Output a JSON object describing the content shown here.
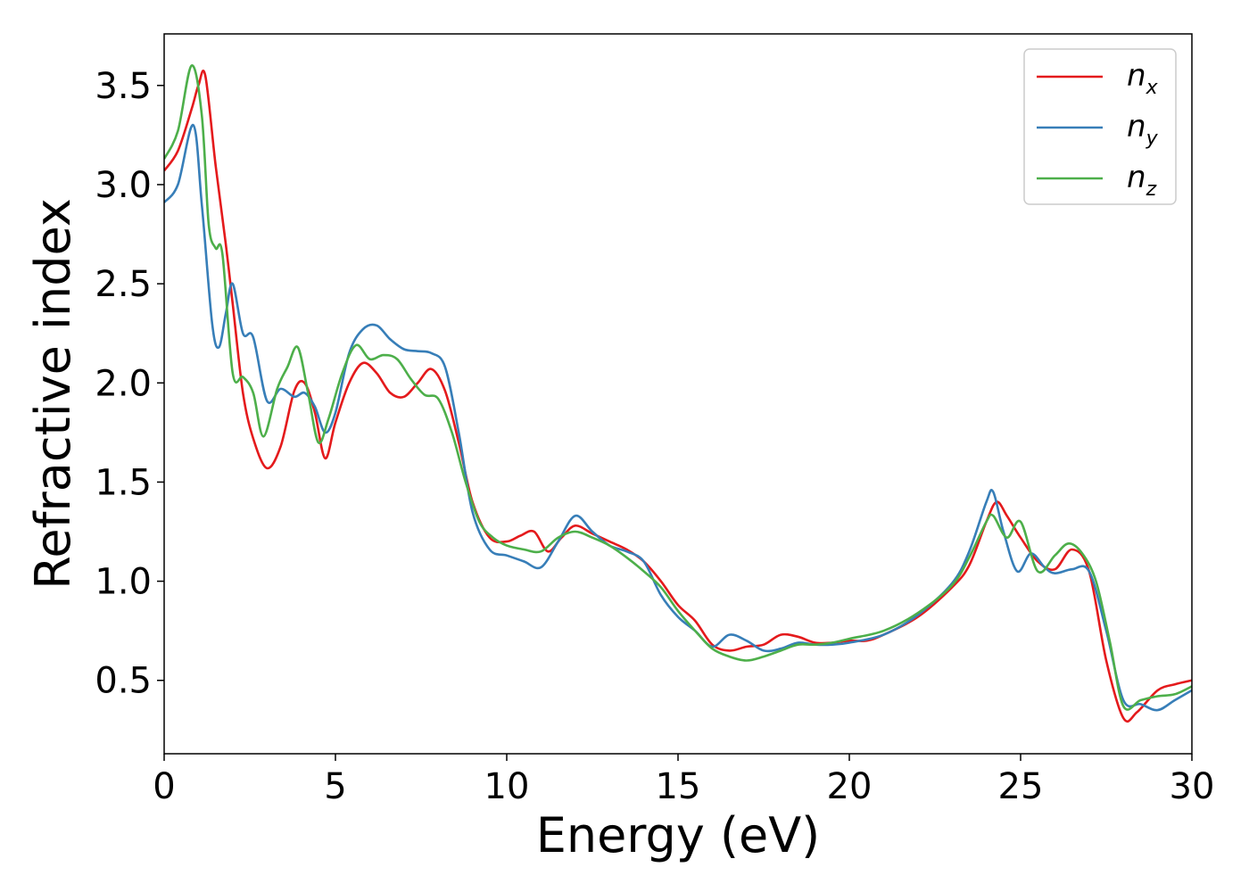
{
  "chart_data": {
    "type": "line",
    "title": "",
    "xlabel": "Energy (eV)",
    "ylabel": "Refractive index",
    "xlim": [
      0,
      30
    ],
    "ylim": [
      0.13,
      3.76
    ],
    "xticks": [
      0,
      5,
      10,
      15,
      20,
      25,
      30
    ],
    "xtick_labels": [
      "0",
      "5",
      "10",
      "15",
      "20",
      "25",
      "30"
    ],
    "yticks": [
      0.5,
      1.0,
      1.5,
      2.0,
      2.5,
      3.0,
      3.5
    ],
    "ytick_labels": [
      "0.5",
      "1.0",
      "1.5",
      "2.0",
      "2.5",
      "3.0",
      "3.5"
    ],
    "grid": false,
    "legend_position": "top-right",
    "series": [
      {
        "name": "n_x",
        "label_base": "n",
        "label_sub": "x",
        "color": "#e41a1c",
        "x": [
          0,
          0.4,
          0.8,
          1.0,
          1.2,
          1.5,
          1.8,
          2.0,
          2.3,
          2.6,
          3.0,
          3.4,
          3.8,
          4.1,
          4.4,
          4.7,
          5.0,
          5.4,
          5.8,
          6.2,
          6.6,
          7.0,
          7.4,
          7.8,
          8.2,
          8.6,
          9.0,
          9.5,
          10.0,
          10.4,
          10.8,
          11.2,
          11.6,
          12.0,
          12.5,
          13.0,
          13.5,
          14.0,
          14.5,
          15.0,
          15.5,
          16.0,
          16.5,
          17.0,
          17.5,
          18.0,
          18.5,
          19.0,
          19.5,
          20.0,
          20.5,
          21.0,
          22.0,
          23.0,
          23.5,
          24.0,
          24.3,
          24.6,
          25.0,
          25.5,
          26.0,
          26.5,
          27.0,
          27.5,
          28.0,
          28.4,
          29.0,
          29.5,
          30.0
        ],
        "y": [
          3.07,
          3.17,
          3.38,
          3.5,
          3.55,
          3.1,
          2.7,
          2.4,
          1.95,
          1.72,
          1.57,
          1.68,
          1.96,
          2.0,
          1.85,
          1.62,
          1.8,
          2.0,
          2.1,
          2.05,
          1.95,
          1.93,
          2.0,
          2.07,
          1.96,
          1.7,
          1.4,
          1.22,
          1.2,
          1.23,
          1.25,
          1.15,
          1.22,
          1.28,
          1.24,
          1.2,
          1.16,
          1.1,
          1.0,
          0.88,
          0.8,
          0.68,
          0.65,
          0.67,
          0.68,
          0.73,
          0.72,
          0.69,
          0.69,
          0.7,
          0.7,
          0.73,
          0.82,
          0.97,
          1.08,
          1.3,
          1.4,
          1.33,
          1.22,
          1.1,
          1.06,
          1.16,
          1.05,
          0.6,
          0.31,
          0.34,
          0.45,
          0.48,
          0.5
        ]
      },
      {
        "name": "n_y",
        "label_base": "n",
        "label_sub": "y",
        "color": "#377eb8",
        "x": [
          0,
          0.4,
          0.85,
          1.1,
          1.4,
          1.6,
          1.8,
          2.0,
          2.3,
          2.6,
          3.0,
          3.4,
          3.8,
          4.1,
          4.4,
          4.7,
          5.0,
          5.4,
          5.8,
          6.2,
          6.6,
          7.0,
          7.4,
          7.8,
          8.2,
          8.6,
          9.0,
          9.5,
          10.0,
          10.5,
          11.0,
          11.5,
          12.0,
          12.5,
          13.0,
          13.5,
          14.0,
          14.5,
          15.0,
          15.5,
          16.0,
          16.5,
          17.0,
          17.5,
          18.0,
          18.5,
          19.0,
          19.5,
          20.0,
          21.0,
          22.0,
          23.0,
          23.5,
          24.0,
          24.2,
          24.5,
          24.9,
          25.3,
          25.7,
          26.0,
          26.5,
          27.0,
          27.5,
          28.0,
          28.5,
          29.0,
          29.5,
          30.0
        ],
        "y": [
          2.91,
          3.0,
          3.3,
          2.9,
          2.3,
          2.18,
          2.35,
          2.5,
          2.25,
          2.23,
          1.91,
          1.97,
          1.93,
          1.95,
          1.88,
          1.75,
          1.85,
          2.15,
          2.27,
          2.29,
          2.22,
          2.17,
          2.16,
          2.15,
          2.08,
          1.75,
          1.35,
          1.16,
          1.13,
          1.1,
          1.07,
          1.2,
          1.33,
          1.25,
          1.18,
          1.15,
          1.1,
          0.93,
          0.82,
          0.75,
          0.67,
          0.73,
          0.7,
          0.65,
          0.66,
          0.69,
          0.68,
          0.68,
          0.69,
          0.73,
          0.83,
          0.99,
          1.15,
          1.4,
          1.45,
          1.25,
          1.05,
          1.14,
          1.07,
          1.04,
          1.06,
          1.05,
          0.75,
          0.4,
          0.38,
          0.35,
          0.4,
          0.45
        ]
      },
      {
        "name": "n_z",
        "label_base": "n",
        "label_sub": "z",
        "color": "#4daf4a",
        "x": [
          0,
          0.4,
          0.8,
          1.1,
          1.3,
          1.5,
          1.7,
          2.0,
          2.3,
          2.6,
          2.9,
          3.3,
          3.6,
          3.9,
          4.2,
          4.5,
          4.8,
          5.2,
          5.6,
          6.0,
          6.4,
          6.8,
          7.2,
          7.6,
          8.0,
          8.4,
          8.8,
          9.2,
          9.6,
          10.0,
          10.5,
          11.0,
          11.5,
          12.0,
          12.5,
          13.0,
          13.5,
          14.0,
          14.5,
          15.0,
          15.5,
          16.0,
          16.5,
          17.0,
          17.5,
          18.0,
          18.5,
          19.0,
          19.5,
          20.0,
          21.0,
          22.0,
          23.0,
          23.5,
          24.0,
          24.2,
          24.6,
          25.0,
          25.5,
          26.0,
          26.4,
          26.8,
          27.2,
          27.6,
          28.0,
          28.5,
          29.0,
          29.5,
          30.0
        ],
        "y": [
          3.13,
          3.27,
          3.6,
          3.35,
          2.8,
          2.68,
          2.65,
          2.05,
          2.03,
          1.95,
          1.73,
          1.97,
          2.08,
          2.18,
          1.95,
          1.7,
          1.82,
          2.05,
          2.19,
          2.12,
          2.14,
          2.12,
          2.02,
          1.94,
          1.92,
          1.75,
          1.5,
          1.3,
          1.22,
          1.18,
          1.16,
          1.15,
          1.22,
          1.25,
          1.22,
          1.18,
          1.12,
          1.05,
          0.97,
          0.85,
          0.75,
          0.66,
          0.62,
          0.6,
          0.62,
          0.65,
          0.68,
          0.68,
          0.69,
          0.71,
          0.75,
          0.84,
          0.98,
          1.12,
          1.3,
          1.33,
          1.22,
          1.3,
          1.05,
          1.13,
          1.19,
          1.14,
          1.0,
          0.7,
          0.37,
          0.4,
          0.42,
          0.43,
          0.47
        ]
      }
    ]
  }
}
